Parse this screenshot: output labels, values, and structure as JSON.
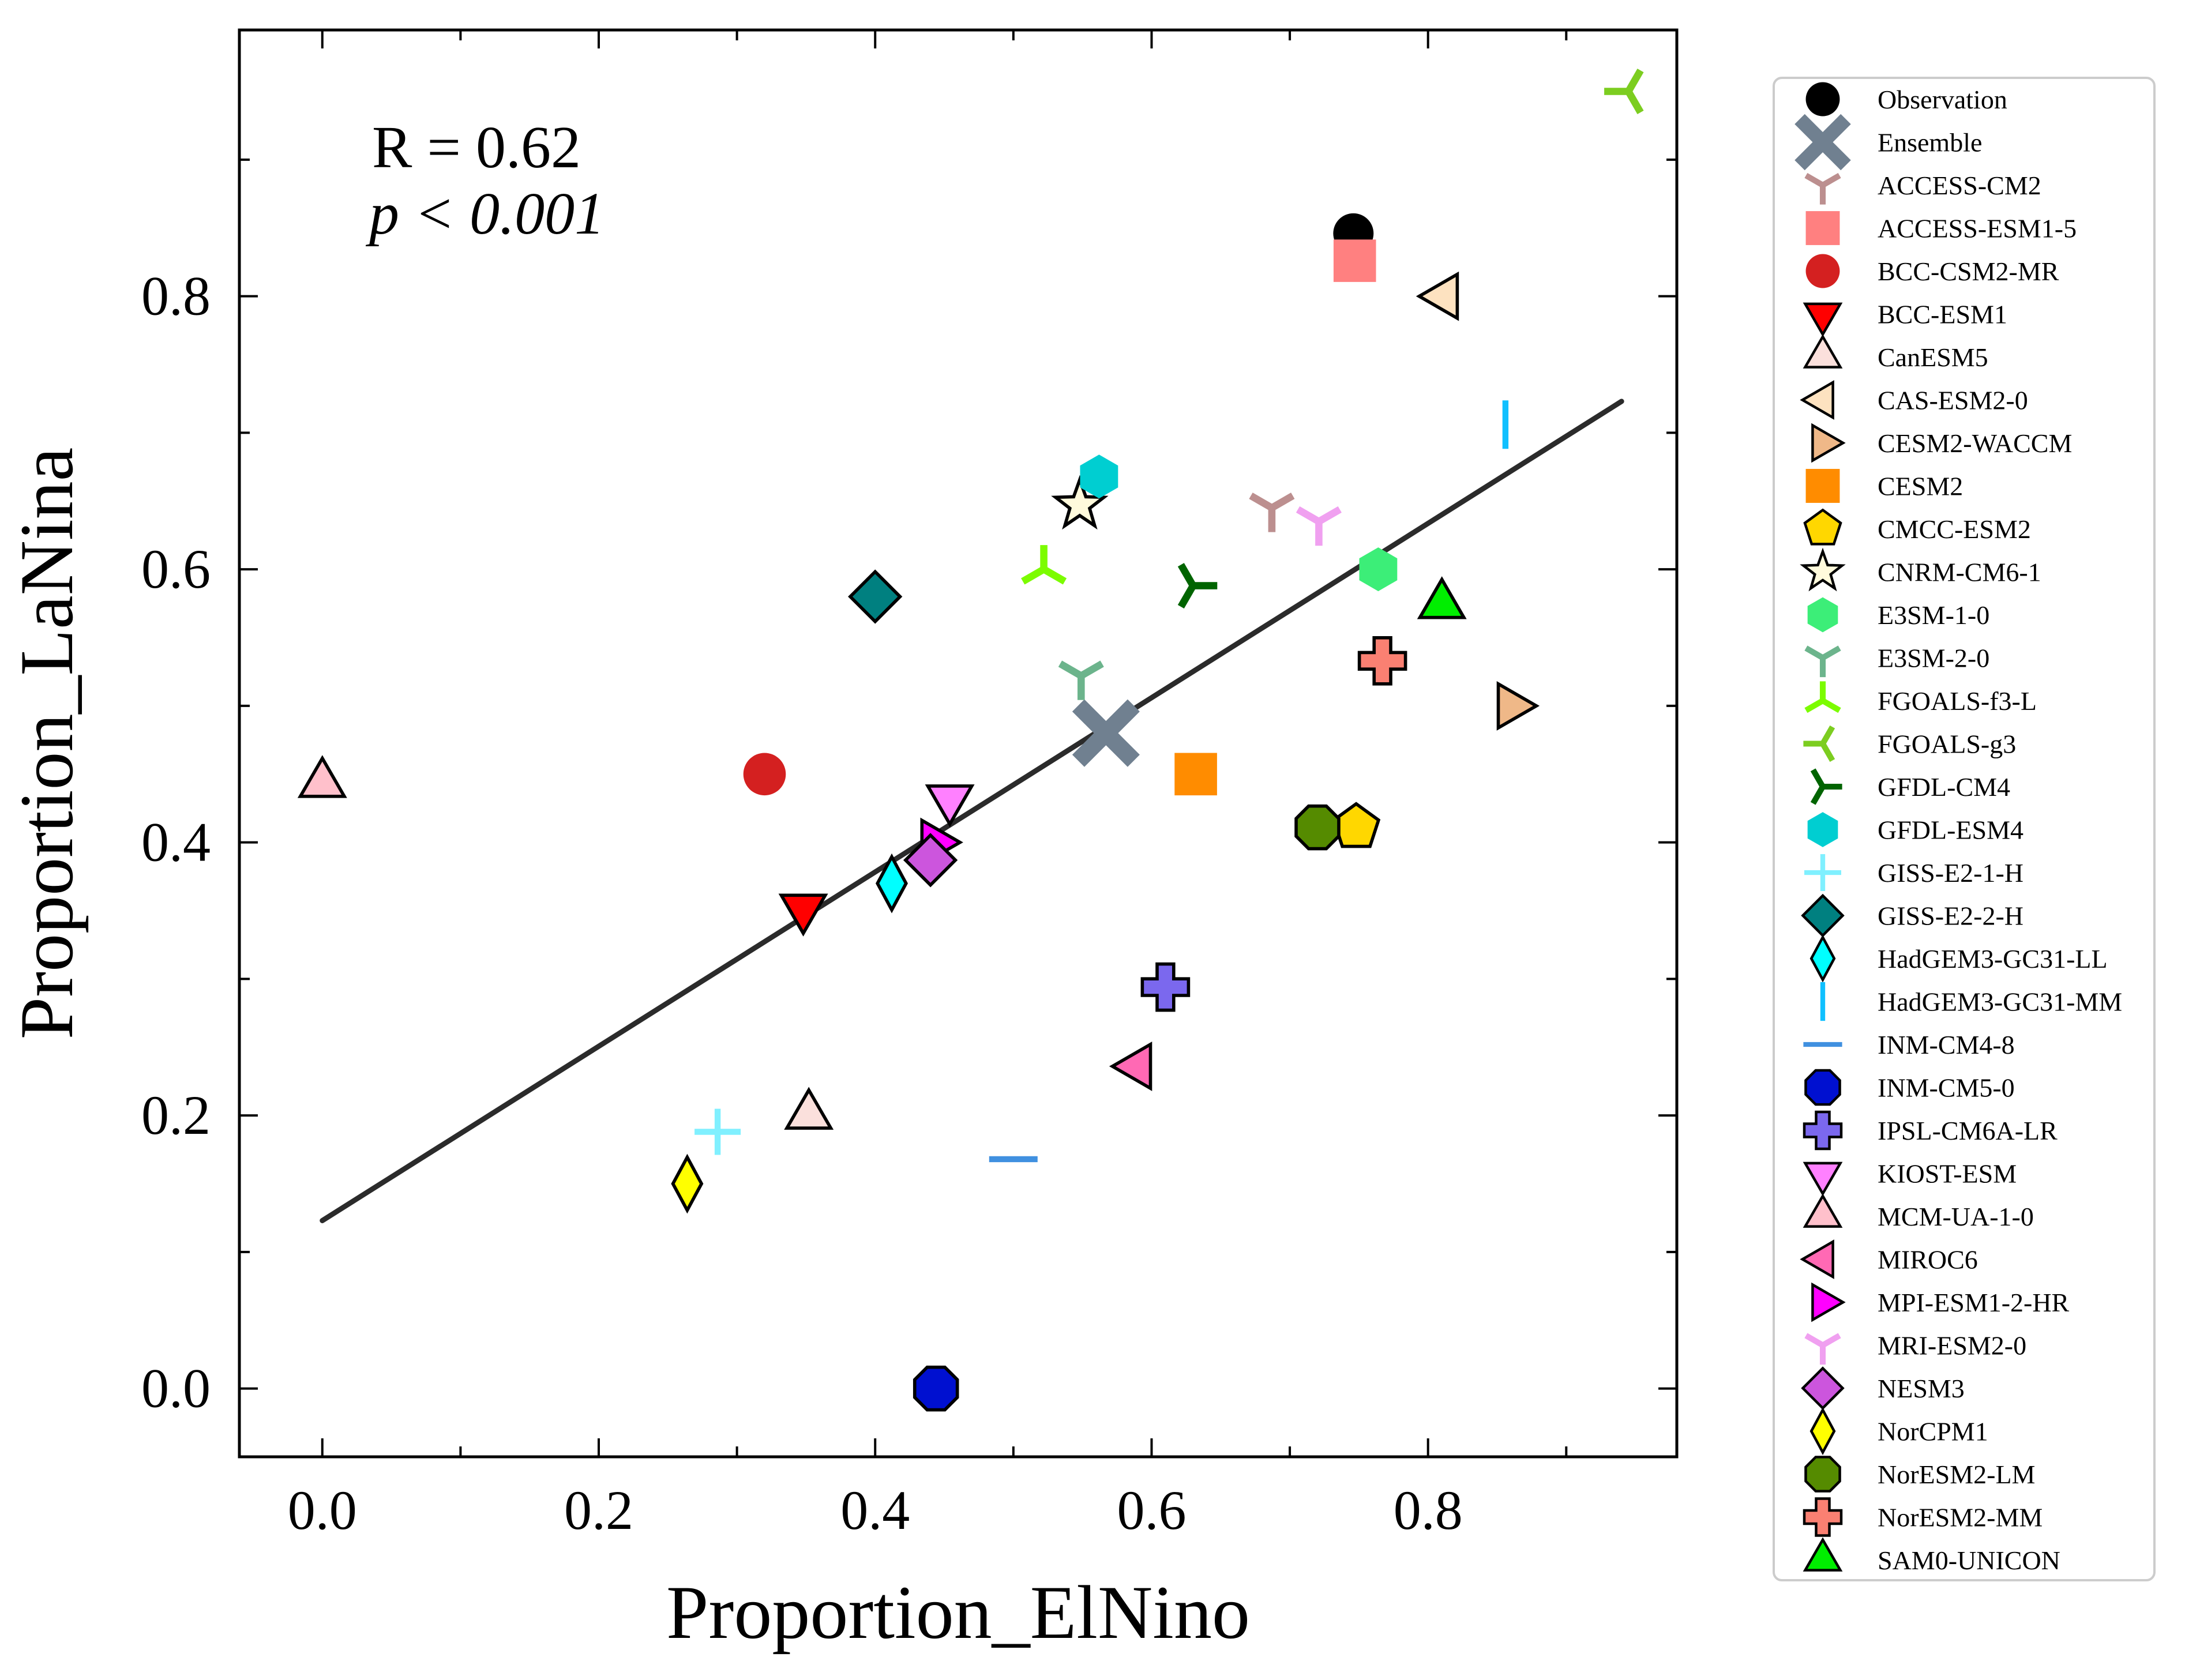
{
  "chart_data": {
    "type": "scatter",
    "xlabel": "Proportion_ElNino",
    "ylabel": "Proportion_LaNina",
    "xlim": [
      -0.06,
      0.98
    ],
    "ylim": [
      -0.05,
      0.995
    ],
    "xticks": [
      "0.0",
      "0.2",
      "0.4",
      "0.6",
      "0.8"
    ],
    "xtick_values": [
      0.0,
      0.2,
      0.4,
      0.6,
      0.8
    ],
    "yticks": [
      "0.0",
      "0.2",
      "0.4",
      "0.6",
      "0.8"
    ],
    "ytick_values": [
      0.0,
      0.2,
      0.4,
      0.6,
      0.8
    ],
    "annotation": {
      "r_text": "R = 0.62",
      "p_text": "p < 0.001"
    },
    "fit_line": {
      "x": [
        0.0,
        0.94
      ],
      "y": [
        0.123,
        0.723
      ],
      "color": "#2b2b2b"
    },
    "legend_position": "outside right",
    "points": [
      {
        "name": "Observation",
        "x": 0.746,
        "y": 0.846,
        "marker": "circle",
        "color": "#000000"
      },
      {
        "name": "Ensemble",
        "x": 0.567,
        "y": 0.48,
        "marker": "x",
        "color": "#708090"
      },
      {
        "name": "ACCESS-CM2",
        "x": 0.687,
        "y": 0.645,
        "marker": "tri_down",
        "color": "#bc8f8f"
      },
      {
        "name": "ACCESS-ESM1-5",
        "x": 0.747,
        "y": 0.826,
        "marker": "square",
        "color": "#ff8080"
      },
      {
        "name": "BCC-CSM2-MR",
        "x": 0.32,
        "y": 0.45,
        "marker": "circle",
        "color": "#d42020"
      },
      {
        "name": "BCC-ESM1",
        "x": 0.348,
        "y": 0.352,
        "marker": "triangle_down",
        "color": "#ff0000"
      },
      {
        "name": "CanESM5",
        "x": 0.352,
        "y": 0.2,
        "marker": "triangle_up",
        "color": "#fbe0dc"
      },
      {
        "name": "CAS-ESM2-0",
        "x": 0.812,
        "y": 0.8,
        "marker": "triangle_left",
        "color": "#fde2c0"
      },
      {
        "name": "CESM2-WACCM",
        "x": 0.86,
        "y": 0.5,
        "marker": "triangle_right",
        "color": "#efb888"
      },
      {
        "name": "CESM2",
        "x": 0.632,
        "y": 0.45,
        "marker": "square",
        "color": "#ff8c00"
      },
      {
        "name": "CMCC-ESM2",
        "x": 0.748,
        "y": 0.411,
        "marker": "pentagon",
        "color": "#ffd700"
      },
      {
        "name": "CNRM-CM6-1",
        "x": 0.548,
        "y": 0.647,
        "marker": "star",
        "color": "#fffadc"
      },
      {
        "name": "E3SM-1-0",
        "x": 0.764,
        "y": 0.6,
        "marker": "hexagon",
        "color": "#3cee78"
      },
      {
        "name": "E3SM-2-0",
        "x": 0.549,
        "y": 0.522,
        "marker": "tri_down",
        "color": "#6cb48c"
      },
      {
        "name": "FGOALS-f3-L",
        "x": 0.522,
        "y": 0.6,
        "marker": "tri_up",
        "color": "#7cfc00"
      },
      {
        "name": "FGOALS-g3",
        "x": 0.945,
        "y": 0.95,
        "marker": "tri_left",
        "color": "#7ccd20"
      },
      {
        "name": "GFDL-CM4",
        "x": 0.63,
        "y": 0.588,
        "marker": "tri_right",
        "color": "#006400"
      },
      {
        "name": "GFDL-ESM4",
        "x": 0.562,
        "y": 0.668,
        "marker": "hexagon",
        "color": "#00ced1"
      },
      {
        "name": "GISS-E2-1-H",
        "x": 0.286,
        "y": 0.188,
        "marker": "plus",
        "color": "#80f0ff"
      },
      {
        "name": "GISS-E2-2-H",
        "x": 0.4,
        "y": 0.58,
        "marker": "diamond",
        "color": "#008080"
      },
      {
        "name": "HadGEM3-GC31-LL",
        "x": 0.412,
        "y": 0.37,
        "marker": "thin_diamond",
        "color": "#00ffff"
      },
      {
        "name": "HadGEM3-GC31-MM",
        "x": 0.856,
        "y": 0.706,
        "marker": "vline",
        "color": "#10c0ff"
      },
      {
        "name": "INM-CM4-8",
        "x": 0.5,
        "y": 0.168,
        "marker": "hline",
        "color": "#4090e0"
      },
      {
        "name": "INM-CM5-0",
        "x": 0.444,
        "y": 0.0,
        "marker": "octagon",
        "color": "#0010d0"
      },
      {
        "name": "IPSL-CM6A-LR",
        "x": 0.61,
        "y": 0.294,
        "marker": "plus_filled",
        "color": "#7b68ee"
      },
      {
        "name": "KIOST-ESM",
        "x": 0.454,
        "y": 0.432,
        "marker": "triangle_down",
        "color": "#ff80ff"
      },
      {
        "name": "MCM-UA-1-0",
        "x": 0.0,
        "y": 0.443,
        "marker": "triangle_up",
        "color": "#ffc0cb"
      },
      {
        "name": "MIROC6",
        "x": 0.59,
        "y": 0.236,
        "marker": "triangle_left",
        "color": "#ff69b4"
      },
      {
        "name": "MPI-ESM1-2-HR",
        "x": 0.443,
        "y": 0.4,
        "marker": "triangle_right",
        "color": "#ff00ff"
      },
      {
        "name": "MRI-ESM2-0",
        "x": 0.721,
        "y": 0.635,
        "marker": "tri_down",
        "color": "#f0a0f0"
      },
      {
        "name": "NESM3",
        "x": 0.44,
        "y": 0.387,
        "marker": "diamond",
        "color": "#cc55dd"
      },
      {
        "name": "NorCPM1",
        "x": 0.264,
        "y": 0.15,
        "marker": "thin_diamond",
        "color": "#ffff00"
      },
      {
        "name": "NorESM2-LM",
        "x": 0.72,
        "y": 0.411,
        "marker": "octagon",
        "color": "#558b00"
      },
      {
        "name": "NorESM2-MM",
        "x": 0.767,
        "y": 0.533,
        "marker": "plus_filled",
        "color": "#fa8072"
      },
      {
        "name": "SAM0-UNICON",
        "x": 0.81,
        "y": 0.574,
        "marker": "triangle_up",
        "color": "#00ee00"
      }
    ]
  }
}
